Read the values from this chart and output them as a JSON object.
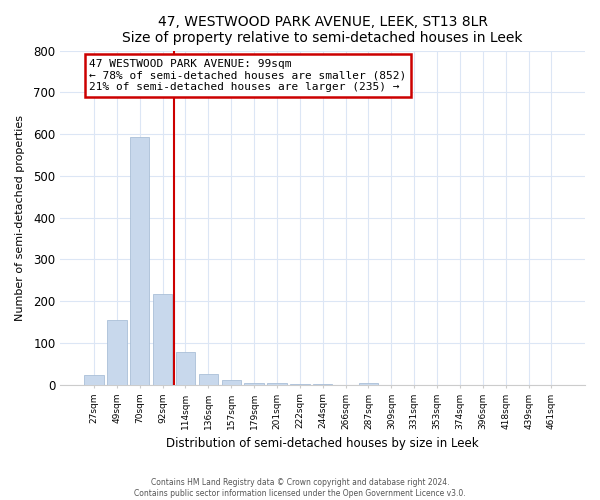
{
  "title": "47, WESTWOOD PARK AVENUE, LEEK, ST13 8LR",
  "subtitle": "Size of property relative to semi-detached houses in Leek",
  "xlabel": "Distribution of semi-detached houses by size in Leek",
  "ylabel": "Number of semi-detached properties",
  "bar_labels": [
    "27sqm",
    "49sqm",
    "70sqm",
    "92sqm",
    "114sqm",
    "136sqm",
    "157sqm",
    "179sqm",
    "201sqm",
    "222sqm",
    "244sqm",
    "266sqm",
    "287sqm",
    "309sqm",
    "331sqm",
    "353sqm",
    "374sqm",
    "396sqm",
    "418sqm",
    "439sqm",
    "461sqm"
  ],
  "bar_values": [
    22,
    155,
    592,
    218,
    78,
    25,
    10,
    5,
    3,
    2,
    1,
    0,
    5,
    0,
    0,
    0,
    0,
    0,
    0,
    0,
    0
  ],
  "bar_color": "#c8d8ec",
  "bar_edge_color": "#aabfd8",
  "property_line_x": 3.5,
  "annotation_title": "47 WESTWOOD PARK AVENUE: 99sqm",
  "annotation_line1": "← 78% of semi-detached houses are smaller (852)",
  "annotation_line2": "21% of semi-detached houses are larger (235) →",
  "annotation_box_facecolor": "#ffffff",
  "annotation_box_edgecolor": "#cc0000",
  "line_color": "#cc0000",
  "ylim": [
    0,
    800
  ],
  "yticks": [
    0,
    100,
    200,
    300,
    400,
    500,
    600,
    700,
    800
  ],
  "footer1": "Contains HM Land Registry data © Crown copyright and database right 2024.",
  "footer2": "Contains public sector information licensed under the Open Government Licence v3.0.",
  "bg_color": "#ffffff",
  "plot_bg_color": "#ffffff",
  "grid_color": "#dce6f5"
}
